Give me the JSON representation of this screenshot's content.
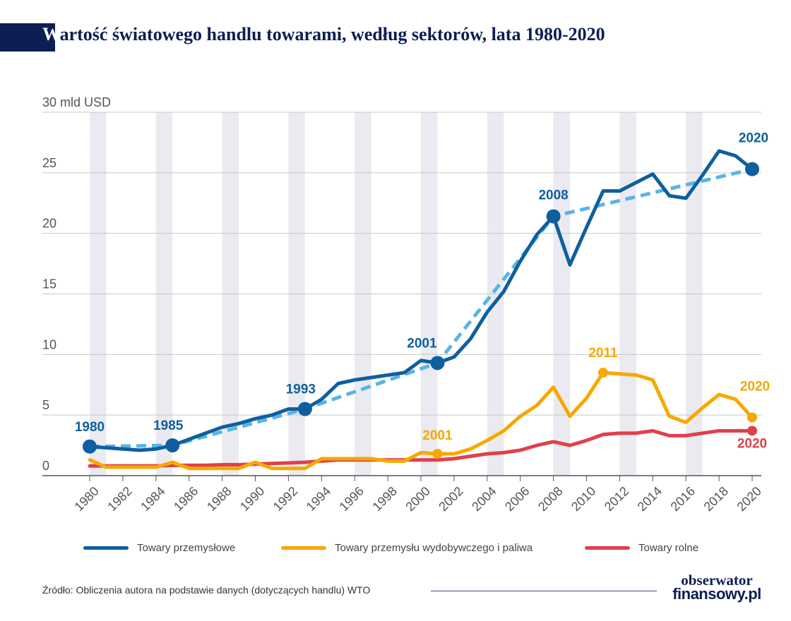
{
  "title": {
    "first_letter": "W",
    "rest": "artość światowego handlu towarami, według sektorów, lata 1980-2020"
  },
  "colors": {
    "industrial": "#0f5f9e",
    "trend": "#5ab4e6",
    "mining": "#f6a800",
    "agri": "#e0404a",
    "grid": "#c8c8c8",
    "band": "#eaeaf0",
    "title": "#0c1e52"
  },
  "legend": [
    {
      "label": "Towary przemysłowe",
      "color": "#0f5f9e"
    },
    {
      "label": "Towary przemysłu wydobywczego i paliwa",
      "color": "#f6a800"
    },
    {
      "label": "Towary rolne",
      "color": "#e0404a"
    }
  ],
  "source": "Źródło: Obliczenia autora na podstawie danych (dotyczących handlu) WTO",
  "logo": {
    "line1": "obserwator",
    "line2": "finansowy.pl"
  },
  "chart_data": {
    "type": "line",
    "title": "Wartość światowego handlu towarami, według sektorów, lata 1980-2020",
    "ylabel": "30 mld USD",
    "ylim": [
      0,
      30
    ],
    "yticks": [
      0,
      5,
      10,
      15,
      20,
      25,
      30
    ],
    "ytick_labels": [
      "0",
      "5",
      "10",
      "15",
      "20",
      "25",
      "30 mld USD"
    ],
    "xlim": [
      1980,
      2020
    ],
    "xticks": [
      1980,
      1982,
      1984,
      1986,
      1988,
      1990,
      1992,
      1994,
      1996,
      1998,
      2000,
      2002,
      2004,
      2006,
      2008,
      2010,
      2012,
      2014,
      2016,
      2018,
      2020
    ],
    "x": [
      1980,
      1981,
      1982,
      1983,
      1984,
      1985,
      1986,
      1987,
      1988,
      1989,
      1990,
      1991,
      1992,
      1993,
      1994,
      1995,
      1996,
      1997,
      1998,
      1999,
      2000,
      2001,
      2002,
      2003,
      2004,
      2005,
      2006,
      2007,
      2008,
      2009,
      2010,
      2011,
      2012,
      2013,
      2014,
      2015,
      2016,
      2017,
      2018,
      2019,
      2020
    ],
    "series": [
      {
        "name": "Towary przemysłowe",
        "color": "#0f5f9e",
        "values": [
          2.4,
          2.3,
          2.2,
          2.1,
          2.2,
          2.5,
          3.0,
          3.5,
          4.0,
          4.3,
          4.7,
          5.0,
          5.5,
          5.5,
          6.3,
          7.6,
          7.9,
          8.1,
          8.3,
          8.5,
          9.5,
          9.3,
          9.8,
          11.3,
          13.5,
          15.2,
          17.7,
          19.9,
          21.4,
          17.4,
          20.5,
          23.5,
          23.5,
          24.2,
          24.9,
          23.1,
          22.9,
          24.8,
          26.8,
          26.4,
          25.3
        ]
      },
      {
        "name": "Towary przemysłu wydobywczego i paliwa",
        "color": "#f6a800",
        "values": [
          1.3,
          0.7,
          0.7,
          0.7,
          0.7,
          1.1,
          0.6,
          0.6,
          0.6,
          0.6,
          1.1,
          0.6,
          0.6,
          0.6,
          1.4,
          1.4,
          1.4,
          1.4,
          1.2,
          1.2,
          1.9,
          1.8,
          1.8,
          2.2,
          2.9,
          3.7,
          4.9,
          5.8,
          7.3,
          4.9,
          6.4,
          8.5,
          8.4,
          8.3,
          7.9,
          4.9,
          4.4,
          5.6,
          6.7,
          6.3,
          4.8
        ]
      },
      {
        "name": "Towary rolne",
        "color": "#e0404a",
        "values": [
          0.8,
          0.8,
          0.8,
          0.8,
          0.8,
          0.85,
          0.85,
          0.85,
          0.9,
          0.9,
          0.95,
          1.0,
          1.05,
          1.1,
          1.2,
          1.3,
          1.3,
          1.3,
          1.3,
          1.3,
          1.3,
          1.3,
          1.4,
          1.6,
          1.8,
          1.9,
          2.1,
          2.5,
          2.8,
          2.5,
          2.9,
          3.4,
          3.5,
          3.5,
          3.7,
          3.3,
          3.3,
          3.5,
          3.7,
          3.7,
          3.7
        ]
      },
      {
        "name": "",
        "style": "dashed",
        "color": "#5ab4e6",
        "x": [
          1980,
          1985,
          1993,
          2001,
          2008,
          2020
        ],
        "values": [
          2.4,
          2.5,
          5.5,
          9.3,
          21.4,
          25.3
        ]
      }
    ],
    "annotations": [
      {
        "series": "Towary przemysłowe",
        "x": 1980,
        "y": 2.4,
        "label": "1980"
      },
      {
        "series": "Towary przemysłowe",
        "x": 1985,
        "y": 2.5,
        "label": "1985"
      },
      {
        "series": "Towary przemysłowe",
        "x": 1993,
        "y": 5.5,
        "label": "1993"
      },
      {
        "series": "Towary przemysłowe",
        "x": 2001,
        "y": 9.3,
        "label": "2001"
      },
      {
        "series": "Towary przemysłowe",
        "x": 2008,
        "y": 21.4,
        "label": "2008"
      },
      {
        "series": "Towary przemysłowe",
        "x": 2020,
        "y": 25.3,
        "label": "2020"
      },
      {
        "series": "Towary przemysłu wydobywczego i paliwa",
        "x": 2001,
        "y": 1.8,
        "label": "2001"
      },
      {
        "series": "Towary przemysłu wydobywczego i paliwa",
        "x": 2011,
        "y": 8.5,
        "label": "2011"
      },
      {
        "series": "Towary przemysłu wydobywczego i paliwa",
        "x": 2020,
        "y": 4.8,
        "label": "2020"
      },
      {
        "series": "Towary rolne",
        "x": 2020,
        "y": 3.7,
        "label": "2020"
      }
    ],
    "grid": true,
    "legend_position": "bottom"
  }
}
